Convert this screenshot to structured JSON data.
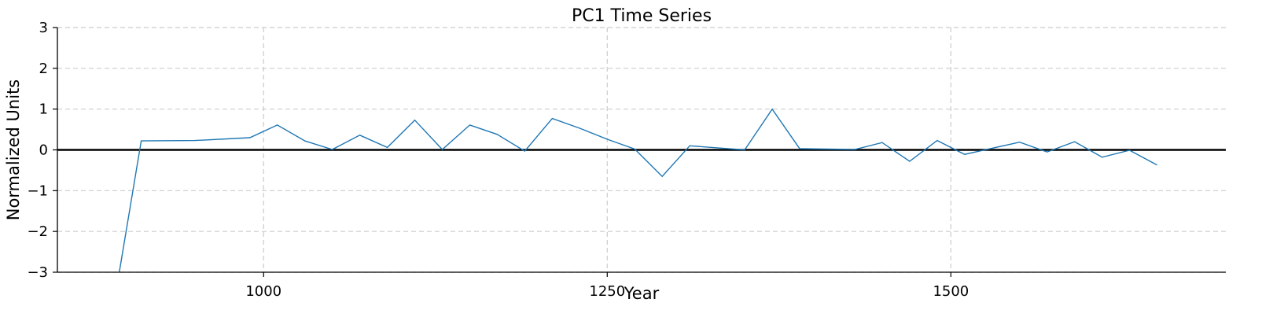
{
  "chart_data": {
    "type": "line",
    "title": "PC1 Time Series",
    "xlabel": "Year",
    "ylabel": "Normalized Units",
    "xlim": [
      850,
      1700
    ],
    "ylim": [
      -3,
      3
    ],
    "xticks": [
      1000,
      1250,
      1500
    ],
    "xtick_labels": [
      "1000",
      "1250",
      "1500"
    ],
    "yticks": [
      -3,
      -2,
      -1,
      0,
      1,
      2,
      3
    ],
    "ytick_labels": [
      "−3",
      "−2",
      "−1",
      "0",
      "1",
      "2",
      "3"
    ],
    "grid": true,
    "reference_line": 0,
    "colors": {
      "series": "#1f77b4",
      "reference": "#000000",
      "grid": "#cccccc"
    },
    "series": [
      {
        "x": [
          895,
          911,
          950,
          990,
          1010,
          1030,
          1050,
          1070,
          1090,
          1110,
          1130,
          1150,
          1170,
          1190,
          1210,
          1230,
          1250,
          1270,
          1290,
          1310,
          1330,
          1350,
          1370,
          1390,
          1410,
          1430,
          1450,
          1470,
          1490,
          1510,
          1530,
          1550,
          1570,
          1590,
          1610,
          1630,
          1650
        ],
        "y": [
          -3.0,
          0.22,
          0.23,
          0.3,
          0.61,
          0.22,
          0.01,
          0.36,
          0.06,
          0.73,
          0.01,
          0.61,
          0.38,
          -0.03,
          0.77,
          0.53,
          0.26,
          0.02,
          -0.65,
          0.1,
          0.05,
          0.0,
          1.0,
          0.03,
          0.02,
          0.01,
          0.18,
          -0.28,
          0.23,
          -0.11,
          0.04,
          0.19,
          -0.05,
          0.2,
          -0.18,
          -0.01,
          -0.37
        ]
      }
    ]
  }
}
